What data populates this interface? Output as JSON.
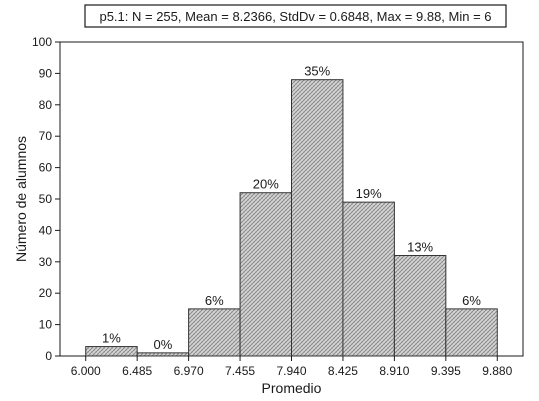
{
  "chart_data": {
    "type": "bar",
    "title": "p5.1:  N = 255, Mean = 8.2366, StdDv = 0.6848, Max = 9.88, Min = 6",
    "xlabel": "Promedio",
    "ylabel": "Número de alumnos",
    "bin_edges": [
      6.0,
      6.485,
      6.97,
      7.455,
      7.94,
      8.425,
      8.91,
      9.395,
      9.88
    ],
    "x_tick_labels": [
      "6.000",
      "6.485",
      "6.970",
      "7.455",
      "7.940",
      "8.425",
      "8.910",
      "9.395",
      "9.880"
    ],
    "values": [
      3,
      1,
      15,
      52,
      88,
      49,
      32,
      15
    ],
    "data_labels": [
      "1%",
      "0%",
      "6%",
      "20%",
      "35%",
      "19%",
      "13%",
      "6%"
    ],
    "ylim": [
      0,
      100
    ],
    "y_ticks": [
      0,
      10,
      20,
      30,
      40,
      50,
      60,
      70,
      80,
      90,
      100
    ],
    "xlim": [
      5.7575,
      10.1225
    ],
    "grid": false,
    "bar_fill_pattern": "crosshatch",
    "bar_edge_color": "#333333"
  }
}
